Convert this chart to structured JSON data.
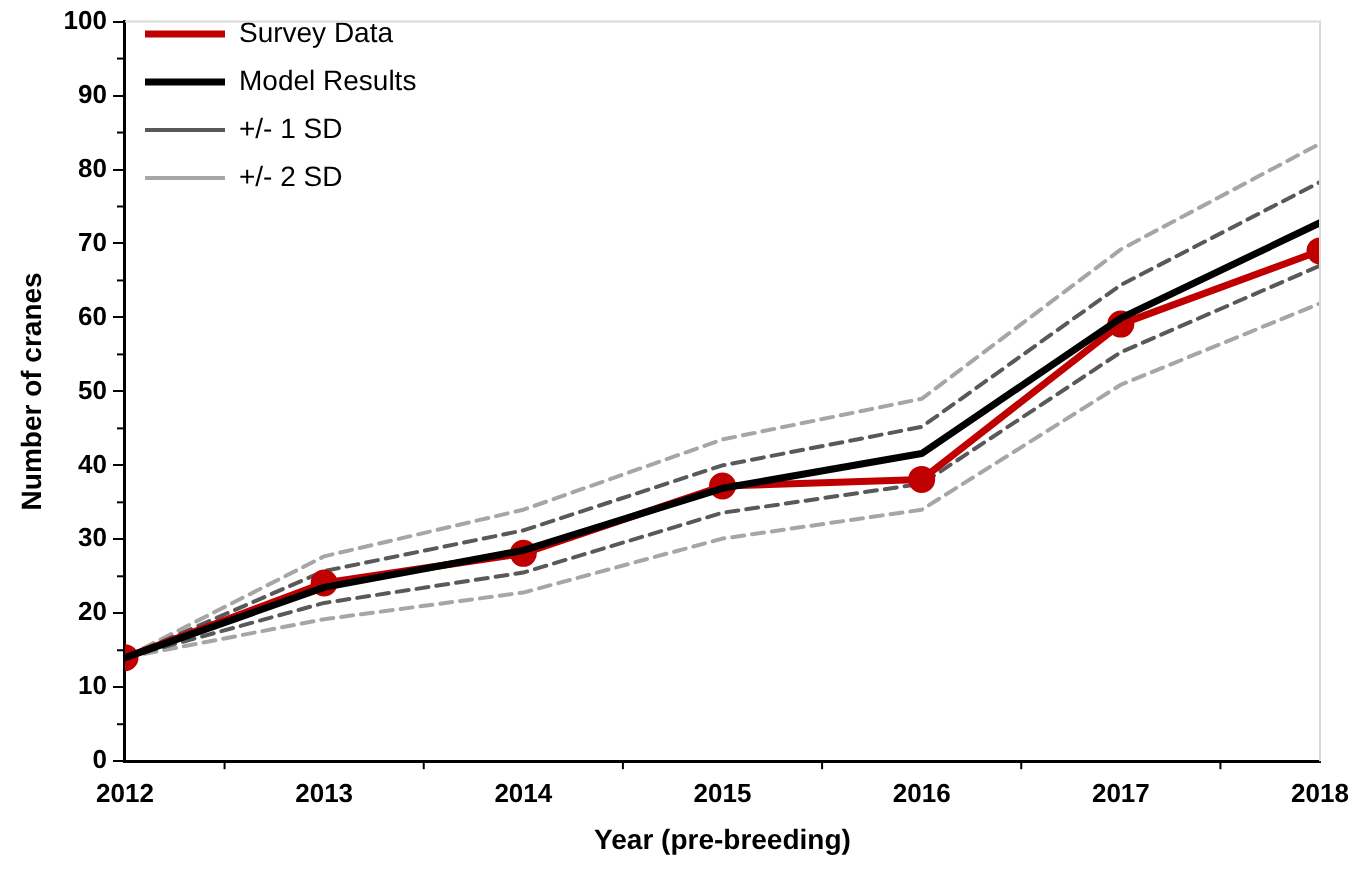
{
  "chart_data": {
    "type": "line",
    "xlabel": "Year (pre-breeding)",
    "ylabel": "Number of cranes",
    "x": [
      2012,
      2013,
      2014,
      2015,
      2016,
      2017,
      2018
    ],
    "xlim": [
      2012,
      2018
    ],
    "xticks": [
      2012,
      2013,
      2014,
      2015,
      2016,
      2017,
      2018
    ],
    "ylim": [
      0,
      100
    ],
    "yticks": [
      0,
      10,
      20,
      30,
      40,
      50,
      60,
      70,
      80,
      90,
      100
    ],
    "grid": false,
    "legend": "top left",
    "series": [
      {
        "name": "Survey Data",
        "color": "#c00000",
        "marker": "circle",
        "line_style": "solid",
        "values": [
          14,
          24.1,
          28.1,
          37.2,
          38.1,
          59.1,
          69
        ]
      },
      {
        "name": "Model Results",
        "color": "#000000",
        "marker": "none",
        "line_style": "solid",
        "values": [
          14,
          23.5,
          28.5,
          36.9,
          41.6,
          59.9,
          72.8
        ]
      },
      {
        "name": "+/- 1 SD",
        "color": "#595959",
        "marker": "none",
        "line_style": "dashed",
        "values": [
          14,
          25.7,
          31.2,
          40,
          45.2,
          64.4,
          78.3
        ]
      },
      {
        "color": "#595959",
        "marker": "none",
        "line_style": "dashed",
        "values": [
          14,
          21.4,
          25.5,
          33.6,
          37.5,
          55.3,
          67
        ]
      },
      {
        "name": "+/- 2 SD",
        "color": "#a6a6a6",
        "marker": "none",
        "line_style": "dashed",
        "values": [
          14,
          27.7,
          34,
          43.5,
          49,
          69.2,
          83.5
        ]
      },
      {
        "color": "#a6a6a6",
        "marker": "none",
        "line_style": "dashed",
        "values": [
          14,
          19.2,
          22.8,
          30.1,
          34,
          50.9,
          61.9
        ]
      }
    ]
  }
}
